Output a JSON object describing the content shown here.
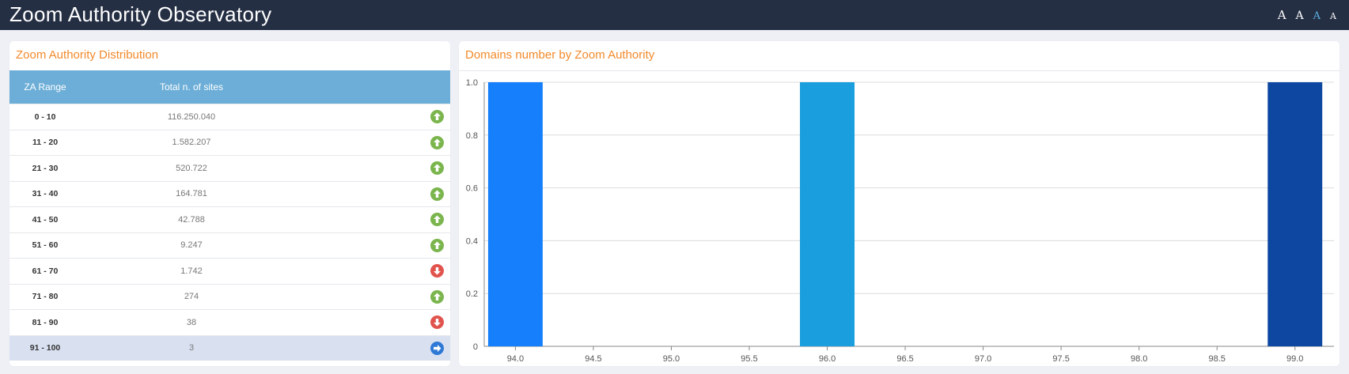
{
  "header": {
    "title": "Zoom Authority Observatory",
    "font_size_options": [
      "A",
      "A",
      "A",
      "A"
    ]
  },
  "table_panel": {
    "title": "Zoom Authority Distribution",
    "columns": [
      "ZA Range",
      "Total n. of sites"
    ],
    "rows": [
      {
        "range": "0 - 10",
        "total": "116.250.040",
        "trend": "up"
      },
      {
        "range": "11 - 20",
        "total": "1.582.207",
        "trend": "up"
      },
      {
        "range": "21 - 30",
        "total": "520.722",
        "trend": "up"
      },
      {
        "range": "31 - 40",
        "total": "164.781",
        "trend": "up"
      },
      {
        "range": "41 - 50",
        "total": "42.788",
        "trend": "up"
      },
      {
        "range": "51 - 60",
        "total": "9.247",
        "trend": "up"
      },
      {
        "range": "61 - 70",
        "total": "1.742",
        "trend": "down"
      },
      {
        "range": "71 - 80",
        "total": "274",
        "trend": "up"
      },
      {
        "range": "81 - 90",
        "total": "38",
        "trend": "down"
      },
      {
        "range": "91 - 100",
        "total": "3",
        "trend": "right"
      }
    ]
  },
  "chart_panel": {
    "title": "Domains number by Zoom Authority"
  },
  "colors": {
    "header_bg": "#252f44",
    "accent_title": "#f28a2b",
    "table_header_bg": "#6caed7",
    "trend_up": "#7bb54d",
    "trend_down": "#e1544d",
    "trend_right": "#2e79d6"
  },
  "chart_data": {
    "type": "bar",
    "title": "",
    "xlabel": "",
    "ylabel": "",
    "x": [
      94,
      96,
      99
    ],
    "values": [
      1,
      1,
      1
    ],
    "bar_colors": [
      "#167ffb",
      "#1a9edd",
      "#0e47a1"
    ],
    "xlim": [
      93.8,
      99.25
    ],
    "ylim": [
      0,
      1
    ],
    "x_ticks": [
      "94.0",
      "94.5",
      "95.0",
      "95.5",
      "96.0",
      "96.5",
      "97.0",
      "97.5",
      "98.0",
      "98.5",
      "99.0"
    ],
    "y_ticks": [
      "0",
      "0.2",
      "0.4",
      "0.6",
      "0.8",
      "1.0"
    ],
    "grid": true,
    "legend": false
  }
}
